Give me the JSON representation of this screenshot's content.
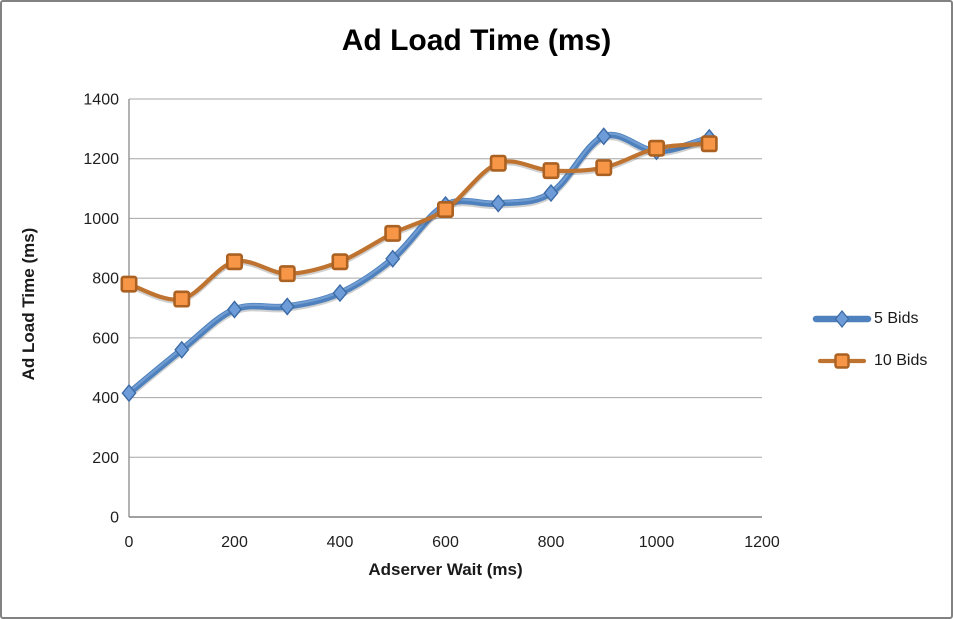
{
  "chart": {
    "title": "Ad Load Time (ms)",
    "x_axis": {
      "label": "Adserver Wait (ms)"
    },
    "y_axis": {
      "label": "Ad Load Time (ms)"
    }
  },
  "chart_data": {
    "type": "line",
    "title": "Ad Load Time (ms)",
    "xlabel": "Adserver Wait (ms)",
    "ylabel": "Ad Load Time (ms)",
    "x": [
      0,
      100,
      200,
      300,
      400,
      500,
      600,
      700,
      800,
      900,
      1000,
      1100
    ],
    "series": [
      {
        "name": "5 Bids",
        "marker": "diamond",
        "line_color": "#4E81BD",
        "line_highlight": "#7BA4D7",
        "marker_fill": "#6D9CD9",
        "marker_stroke": "#3D6BA5",
        "line_width": 6.5,
        "values": [
          415,
          560,
          695,
          705,
          750,
          865,
          1045,
          1050,
          1085,
          1275,
          1225,
          1270
        ]
      },
      {
        "name": "10 Bids",
        "marker": "square",
        "line_color": "#BE7331",
        "marker_fill": "#F79646",
        "marker_stroke": "#AA6122",
        "line_width": 4.2,
        "values": [
          780,
          730,
          855,
          815,
          855,
          950,
          1030,
          1185,
          1160,
          1170,
          1235,
          1250
        ]
      }
    ],
    "xlim": [
      0,
      1200
    ],
    "ylim": [
      0,
      1400
    ],
    "x_ticks": [
      0,
      200,
      400,
      600,
      800,
      1000,
      1200
    ],
    "y_ticks": [
      0,
      200,
      400,
      600,
      800,
      1000,
      1200,
      1400
    ],
    "grid": true,
    "gridline_color": "#A6A6A6",
    "axis_color": "#808080",
    "legend_position": "right",
    "smooth_lines": true
  }
}
